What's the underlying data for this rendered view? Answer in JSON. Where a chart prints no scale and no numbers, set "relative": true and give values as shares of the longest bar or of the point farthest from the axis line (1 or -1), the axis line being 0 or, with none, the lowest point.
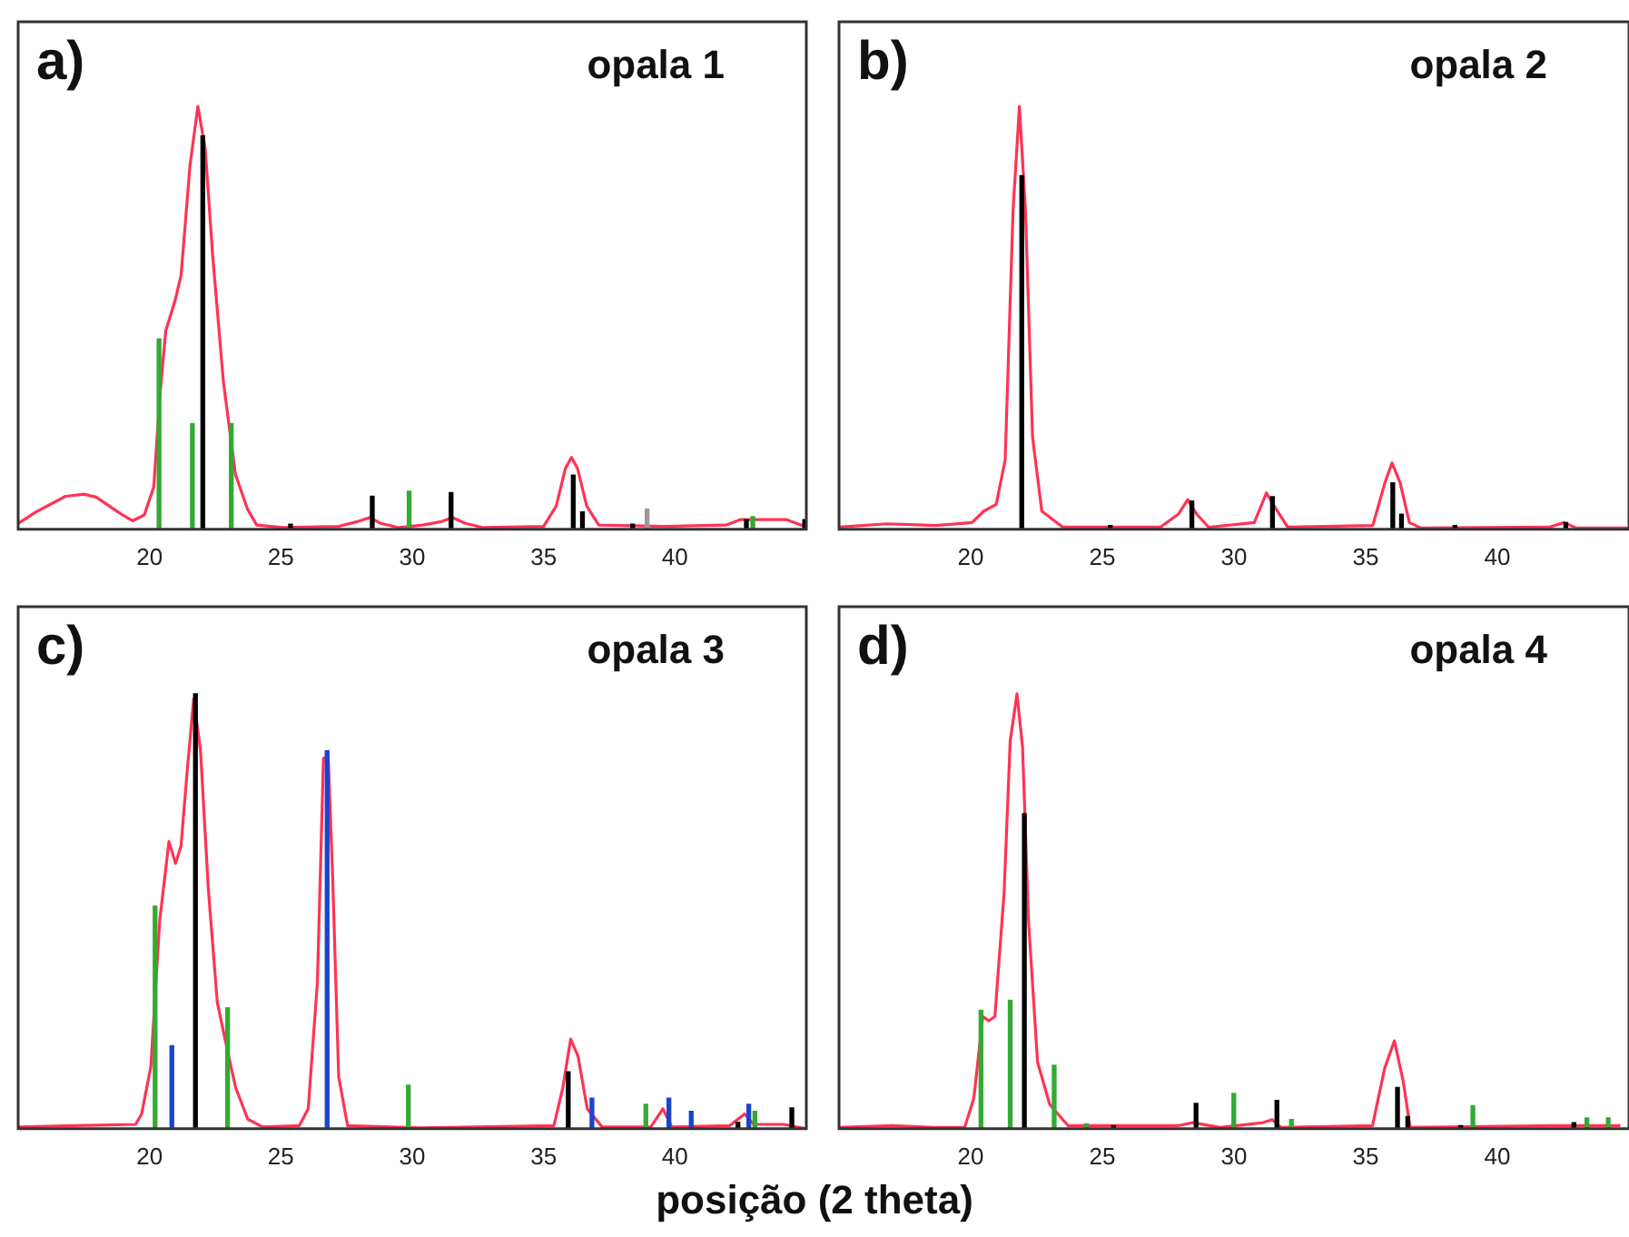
{
  "chart_data": [
    {
      "type": "line",
      "title": "opala 1",
      "annotations": [
        "a)"
      ],
      "relative": true,
      "xlim": [
        15,
        45
      ],
      "xticks": [
        20,
        25,
        30,
        35,
        40
      ],
      "grid": false,
      "legend": false,
      "marker": "none",
      "series": [
        {
          "color": "#ff3355",
          "x": [
            15,
            15.65,
            16.8,
            17.5,
            17.97,
            18.9,
            19.35,
            19.8,
            20.16,
            20.4,
            20.62,
            20.97,
            21.2,
            21.54,
            21.84,
            22.12,
            22.4,
            22.81,
            23.27,
            23.73,
            24.08,
            25.1,
            27.2,
            27.9,
            28.39,
            28.8,
            29.5,
            30.4,
            31.1,
            31.52,
            32.03,
            32.7,
            35,
            35.48,
            35.83,
            36.06,
            36.29,
            36.64,
            37.1,
            39.63,
            41.94,
            42.5,
            44.23,
            44.93
          ],
          "values": [
            0.014,
            0.04,
            0.078,
            0.083,
            0.076,
            0.037,
            0.02,
            0.034,
            0.1,
            0.32,
            0.47,
            0.54,
            0.6,
            0.86,
            1,
            0.9,
            0.65,
            0.35,
            0.13,
            0.048,
            0.01,
            0.004,
            0.007,
            0.018,
            0.028,
            0.014,
            0.004,
            0.01,
            0.018,
            0.028,
            0.014,
            0.004,
            0.007,
            0.055,
            0.144,
            0.17,
            0.144,
            0.055,
            0.01,
            0.007,
            0.01,
            0.023,
            0.023,
            0.007
          ]
        },
        {
          "type": "bar",
          "color": "#33aa33",
          "x": [
            20.5,
            21.77,
            23.25,
            30.02,
            43.1
          ],
          "values": [
            0.45,
            0.25,
            0.25,
            0.09,
            0.03
          ]
        },
        {
          "type": "bar",
          "color": "#999999",
          "x": [
            38.94
          ],
          "values": [
            0.048
          ]
        },
        {
          "type": "bar",
          "color": "#000000",
          "x": [
            21.89,
            25.23,
            28.34,
            31.34,
            35.99,
            36.34,
            38.25,
            42.58,
            44.8
          ],
          "values": [
            0.93,
            0.012,
            0.078,
            0.087,
            0.128,
            0.041,
            0.012,
            0.023,
            0.023
          ]
        }
      ]
    },
    {
      "type": "line",
      "title": "opala 2",
      "annotations": [
        "b)"
      ],
      "relative": true,
      "xlim": [
        15,
        45
      ],
      "xticks": [
        20,
        25,
        30,
        35,
        40
      ],
      "grid": false,
      "legend": false,
      "marker": "none",
      "series": [
        {
          "color": "#ff3355",
          "x": [
            15,
            16.82,
            18.66,
            20.05,
            20.5,
            20.97,
            21.31,
            21.61,
            21.85,
            22.08,
            22.35,
            22.7,
            23.5,
            27.2,
            27.89,
            28.24,
            28.58,
            29.04,
            30.77,
            31.23,
            31.58,
            32.04,
            35.27,
            35.73,
            36,
            36.31,
            36.66,
            37.1,
            41.96,
            42.54,
            43,
            45
          ],
          "values": [
            0.005,
            0.013,
            0.009,
            0.016,
            0.043,
            0.059,
            0.164,
            0.755,
            1,
            0.755,
            0.218,
            0.043,
            0.005,
            0.005,
            0.036,
            0.07,
            0.036,
            0.005,
            0.016,
            0.086,
            0.05,
            0.005,
            0.009,
            0.11,
            0.157,
            0.11,
            0.016,
            0.003,
            0.005,
            0.016,
            0.003,
            0.003
          ]
        },
        {
          "type": "bar",
          "color": "#000000",
          "x": [
            21.94,
            25.3,
            28.4,
            31.46,
            36.03,
            36.36,
            38.39,
            42.6
          ],
          "values": [
            0.836,
            0.009,
            0.067,
            0.077,
            0.11,
            0.036,
            0.009,
            0.016
          ]
        }
      ]
    },
    {
      "type": "line",
      "title": "opala 3",
      "annotations": [
        "c)"
      ],
      "xlabel": "posição (2 theta)",
      "relative": true,
      "xlim": [
        15,
        45
      ],
      "xticks": [
        20,
        25,
        30,
        35,
        40
      ],
      "grid": false,
      "legend": false,
      "marker": "none",
      "series": [
        {
          "color": "#ff3355",
          "x": [
            15,
            17.16,
            19.47,
            19.7,
            20.05,
            20.39,
            20.74,
            20.99,
            21.2,
            21.43,
            21.68,
            21.94,
            22.24,
            22.58,
            22.93,
            23.28,
            23.74,
            24.31,
            25.7,
            26.04,
            26.39,
            26.62,
            26.8,
            26.97,
            27.2,
            27.54,
            30.31,
            35.39,
            35.73,
            36.03,
            36.31,
            36.66,
            37.23,
            39.08,
            39.54,
            39.88,
            42.08,
            42.65,
            43,
            44.15,
            45
          ],
          "values": [
            0.004,
            0.007,
            0.01,
            0.034,
            0.143,
            0.48,
            0.66,
            0.61,
            0.65,
            0.82,
            0.988,
            0.87,
            0.55,
            0.29,
            0.19,
            0.094,
            0.022,
            0.004,
            0.007,
            0.046,
            0.337,
            0.851,
            0.857,
            0.58,
            0.119,
            0.007,
            0.002,
            0.007,
            0.094,
            0.206,
            0.167,
            0.046,
            0.004,
            0.004,
            0.046,
            0.004,
            0.007,
            0.034,
            0.01,
            0.01,
            0
          ]
        },
        {
          "type": "bar",
          "color": "#33aa33",
          "x": [
            20.35,
            23.11,
            29.99,
            39.03,
            43.18
          ],
          "values": [
            0.512,
            0.278,
            0.1,
            0.056,
            0.04
          ]
        },
        {
          "type": "bar",
          "color": "#1a44cc",
          "x": [
            20.85,
            26.76,
            36.84,
            39.77,
            40.62,
            42.81
          ],
          "values": [
            0.191,
            0.869,
            0.07,
            0.07,
            0.04,
            0.056
          ]
        },
        {
          "type": "bar",
          "color": "#000000",
          "x": [
            21.61,
            35.8,
            42.26,
            44.31
          ],
          "values": [
            1,
            0.131,
            0.015,
            0.048
          ]
        }
      ]
    },
    {
      "type": "line",
      "title": "opala 4",
      "annotations": [
        "d)"
      ],
      "relative": true,
      "xlim": [
        15,
        45
      ],
      "xticks": [
        20,
        25,
        30,
        35,
        40
      ],
      "grid": false,
      "legend": false,
      "marker": "none",
      "series": [
        {
          "color": "#ff3355",
          "x": [
            15,
            16.99,
            18.61,
            19.77,
            20.12,
            20.46,
            20.69,
            20.92,
            21.27,
            21.5,
            21.76,
            21.97,
            22.2,
            22.54,
            23,
            23.7,
            27.86,
            28.44,
            29.48,
            31.1,
            31.45,
            31.79,
            35.26,
            35.72,
            36.09,
            36.42,
            36.69,
            42.2,
            44.67
          ],
          "values": [
            0.003,
            0.007,
            0.003,
            0.003,
            0.07,
            0.258,
            0.248,
            0.258,
            0.543,
            0.891,
            1,
            0.877,
            0.474,
            0.153,
            0.056,
            0.007,
            0.007,
            0.014,
            0.003,
            0.014,
            0.021,
            0.003,
            0.007,
            0.139,
            0.202,
            0.111,
            0.003,
            0.007,
            0.007
          ]
        },
        {
          "type": "bar",
          "color": "#33aa33",
          "x": [
            20.46,
            21.57,
            23.24,
            24.46,
            30.06,
            32.25,
            39.14,
            43.47,
            44.28
          ],
          "values": [
            0.272,
            0.295,
            0.146,
            0.011,
            0.081,
            0.021,
            0.053,
            0.025,
            0.025
          ]
        },
        {
          "type": "bar",
          "color": "#000000",
          "x": [
            21.97,
            25.36,
            28.49,
            31.56,
            36.14,
            36.53,
            38.54,
            42.84
          ],
          "values": [
            0.724,
            0.007,
            0.058,
            0.065,
            0.095,
            0.028,
            0.007,
            0.014
          ]
        }
      ]
    }
  ]
}
